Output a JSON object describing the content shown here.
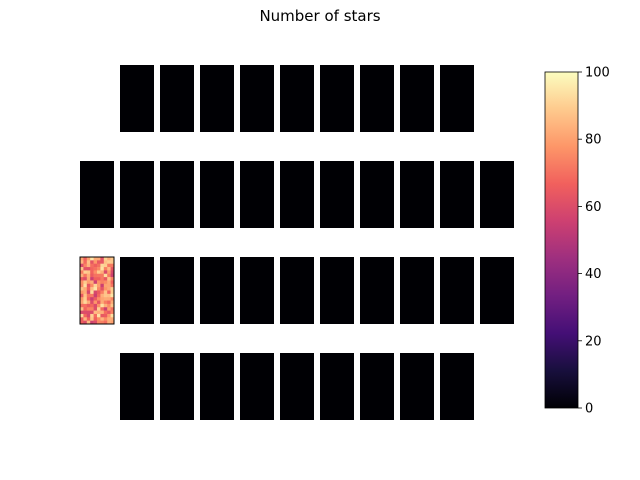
{
  "chart_data": {
    "type": "heatmap",
    "title": "Number of stars",
    "layout": "focal-plane chip grid",
    "rows": [
      {
        "chip_count": 9,
        "offset": 1
      },
      {
        "chip_count": 11,
        "offset": 0
      },
      {
        "chip_count": 11,
        "offset": 0
      },
      {
        "chip_count": 9,
        "offset": 1
      }
    ],
    "chip_cells": {
      "columns": 10,
      "rows": 20
    },
    "default_value": 0,
    "highlighted_chip": {
      "row": 2,
      "column": 0,
      "value_range": [
        55,
        95
      ]
    },
    "colorbar": {
      "colormap": "magma",
      "range": [
        0,
        100
      ],
      "ticks": [
        "0",
        "20",
        "40",
        "60",
        "80",
        "100"
      ]
    },
    "colors": {
      "magma_stops": [
        "#000004",
        "#180f3d",
        "#440f76",
        "#721f81",
        "#9e2f7f",
        "#cd4071",
        "#f1605d",
        "#fd9668",
        "#feca8d",
        "#fcfdbf"
      ]
    }
  }
}
